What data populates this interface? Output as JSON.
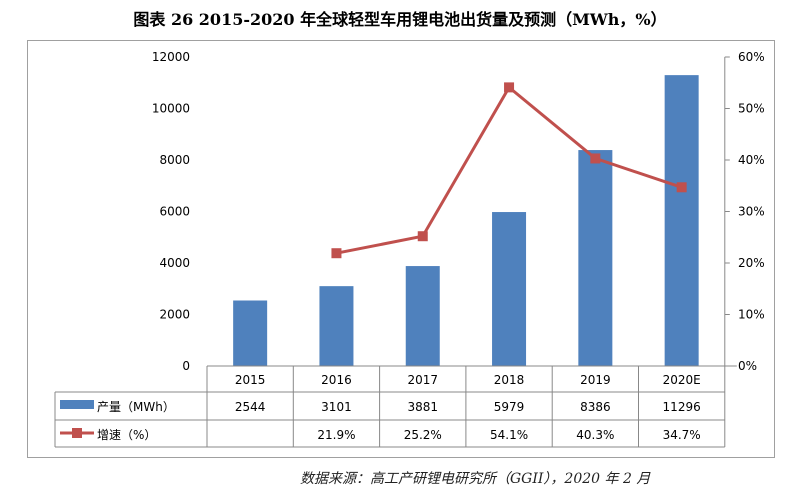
{
  "title": "图表 26   2015-2020 年全球轻型车用锂电池出货量及预测（MWh，%）",
  "source": "数据来源：高工产研锂电研究所（GGII），2020 年 2 月",
  "colors": {
    "bar": "#4f81bd",
    "line": "#c0504d"
  },
  "chart_data": {
    "type": "bar+line",
    "categories": [
      "2015",
      "2016",
      "2017",
      "2018",
      "2019",
      "2020E"
    ],
    "series": [
      {
        "name": "产量（MWh）",
        "type": "bar",
        "axis": "left",
        "values": [
          2544,
          3101,
          3881,
          5979,
          8386,
          11296
        ],
        "labels": [
          "2544",
          "3101",
          "3881",
          "5979",
          "8386",
          "11296"
        ]
      },
      {
        "name": "增速（%）",
        "type": "line",
        "axis": "right",
        "values": [
          null,
          21.9,
          25.2,
          54.1,
          40.3,
          34.7
        ],
        "labels": [
          "",
          "21.9%",
          "25.2%",
          "54.1%",
          "40.3%",
          "34.7%"
        ]
      }
    ],
    "left_axis": {
      "range": [
        0,
        12000
      ],
      "ticks": [
        "0",
        "2000",
        "4000",
        "6000",
        "8000",
        "10000",
        "12000"
      ]
    },
    "right_axis": {
      "range": [
        0,
        60
      ],
      "ticks": [
        "0%",
        "10%",
        "20%",
        "30%",
        "40%",
        "50%",
        "60%"
      ]
    },
    "legend": "data-table"
  }
}
